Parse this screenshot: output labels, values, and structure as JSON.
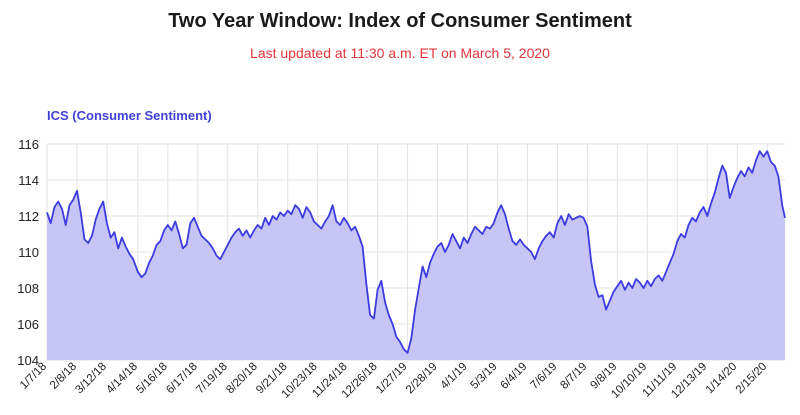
{
  "header": {
    "title": "Two Year Window: Index of Consumer Sentiment",
    "subtitle": "Last updated at 11:30 a.m. ET on March 5, 2020"
  },
  "colors": {
    "title": "#1a1a1a",
    "subtitle": "#e0353b",
    "line": "#3b3be0",
    "fill": "#c7c5f5",
    "grid": "#e3e3e3"
  },
  "chart_data": {
    "type": "area",
    "title": "Two Year Window: Index of Consumer Sentiment",
    "subtitle": "Last updated at 11:30 a.m. ET on March 5, 2020",
    "xlabel": "",
    "ylabel": "ICS (Consumer Sentiment)",
    "ylim": [
      104,
      116
    ],
    "yticks": [
      104,
      106,
      108,
      110,
      112,
      114,
      116
    ],
    "xlim": [
      "2018-01-07",
      "2020-03-05"
    ],
    "xticks": [
      "1/7/18",
      "2/8/18",
      "3/12/18",
      "4/14/18",
      "5/16/18",
      "6/17/18",
      "7/19/18",
      "8/20/18",
      "9/21/18",
      "10/23/18",
      "11/24/18",
      "12/26/18",
      "1/27/19",
      "2/28/19",
      "4/1/19",
      "5/3/19",
      "6/4/19",
      "7/6/19",
      "8/7/19",
      "9/8/19",
      "10/10/19",
      "11/11/19",
      "12/13/19",
      "1/14/20",
      "2/15/20"
    ],
    "grid": true,
    "legend": "none",
    "series": [
      {
        "name": "ICS (Consumer Sentiment)",
        "points": [
          [
            "2018-01-07",
            112.2
          ],
          [
            "2018-01-11",
            111.6
          ],
          [
            "2018-01-15",
            112.5
          ],
          [
            "2018-01-19",
            112.8
          ],
          [
            "2018-01-23",
            112.4
          ],
          [
            "2018-01-27",
            111.5
          ],
          [
            "2018-01-31",
            112.6
          ],
          [
            "2018-02-04",
            112.9
          ],
          [
            "2018-02-08",
            113.4
          ],
          [
            "2018-02-12",
            112.2
          ],
          [
            "2018-02-16",
            110.7
          ],
          [
            "2018-02-20",
            110.5
          ],
          [
            "2018-02-24",
            110.9
          ],
          [
            "2018-02-28",
            111.8
          ],
          [
            "2018-03-04",
            112.4
          ],
          [
            "2018-03-08",
            112.8
          ],
          [
            "2018-03-12",
            111.6
          ],
          [
            "2018-03-16",
            110.8
          ],
          [
            "2018-03-20",
            111.1
          ],
          [
            "2018-03-24",
            110.2
          ],
          [
            "2018-03-28",
            110.8
          ],
          [
            "2018-04-01",
            110.3
          ],
          [
            "2018-04-05",
            109.9
          ],
          [
            "2018-04-09",
            109.6
          ],
          [
            "2018-04-14",
            108.9
          ],
          [
            "2018-04-18",
            108.6
          ],
          [
            "2018-04-22",
            108.8
          ],
          [
            "2018-04-26",
            109.4
          ],
          [
            "2018-04-30",
            109.8
          ],
          [
            "2018-05-04",
            110.4
          ],
          [
            "2018-05-08",
            110.6
          ],
          [
            "2018-05-12",
            111.2
          ],
          [
            "2018-05-16",
            111.5
          ],
          [
            "2018-05-20",
            111.2
          ],
          [
            "2018-05-24",
            111.7
          ],
          [
            "2018-05-28",
            111.0
          ],
          [
            "2018-06-01",
            110.2
          ],
          [
            "2018-06-05",
            110.4
          ],
          [
            "2018-06-09",
            111.6
          ],
          [
            "2018-06-13",
            111.9
          ],
          [
            "2018-06-17",
            111.4
          ],
          [
            "2018-06-21",
            110.9
          ],
          [
            "2018-06-25",
            110.7
          ],
          [
            "2018-06-29",
            110.5
          ],
          [
            "2018-07-03",
            110.2
          ],
          [
            "2018-07-07",
            109.8
          ],
          [
            "2018-07-11",
            109.6
          ],
          [
            "2018-07-15",
            110.0
          ],
          [
            "2018-07-19",
            110.4
          ],
          [
            "2018-07-23",
            110.8
          ],
          [
            "2018-07-27",
            111.1
          ],
          [
            "2018-07-31",
            111.3
          ],
          [
            "2018-08-04",
            110.9
          ],
          [
            "2018-08-08",
            111.2
          ],
          [
            "2018-08-12",
            110.8
          ],
          [
            "2018-08-16",
            111.2
          ],
          [
            "2018-08-20",
            111.5
          ],
          [
            "2018-08-24",
            111.3
          ],
          [
            "2018-08-28",
            111.9
          ],
          [
            "2018-09-01",
            111.5
          ],
          [
            "2018-09-05",
            112.0
          ],
          [
            "2018-09-09",
            111.8
          ],
          [
            "2018-09-13",
            112.2
          ],
          [
            "2018-09-17",
            112.0
          ],
          [
            "2018-09-21",
            112.3
          ],
          [
            "2018-09-25",
            112.1
          ],
          [
            "2018-09-29",
            112.6
          ],
          [
            "2018-10-03",
            112.4
          ],
          [
            "2018-10-07",
            111.9
          ],
          [
            "2018-10-11",
            112.5
          ],
          [
            "2018-10-15",
            112.2
          ],
          [
            "2018-10-19",
            111.7
          ],
          [
            "2018-10-23",
            111.5
          ],
          [
            "2018-10-27",
            111.3
          ],
          [
            "2018-10-31",
            111.7
          ],
          [
            "2018-11-04",
            112.0
          ],
          [
            "2018-11-08",
            112.6
          ],
          [
            "2018-11-12",
            111.7
          ],
          [
            "2018-11-16",
            111.5
          ],
          [
            "2018-11-20",
            111.9
          ],
          [
            "2018-11-24",
            111.6
          ],
          [
            "2018-11-28",
            111.2
          ],
          [
            "2018-12-02",
            111.4
          ],
          [
            "2018-12-06",
            110.9
          ],
          [
            "2018-12-10",
            110.3
          ],
          [
            "2018-12-14",
            108.2
          ],
          [
            "2018-12-18",
            106.5
          ],
          [
            "2018-12-22",
            106.3
          ],
          [
            "2018-12-26",
            107.9
          ],
          [
            "2018-12-30",
            108.4
          ],
          [
            "2019-01-03",
            107.2
          ],
          [
            "2019-01-07",
            106.5
          ],
          [
            "2019-01-11",
            106.0
          ],
          [
            "2019-01-15",
            105.3
          ],
          [
            "2019-01-19",
            105.0
          ],
          [
            "2019-01-23",
            104.6
          ],
          [
            "2019-01-27",
            104.4
          ],
          [
            "2019-01-31",
            105.2
          ],
          [
            "2019-02-04",
            106.8
          ],
          [
            "2019-02-08",
            108.0
          ],
          [
            "2019-02-12",
            109.2
          ],
          [
            "2019-02-16",
            108.6
          ],
          [
            "2019-02-20",
            109.4
          ],
          [
            "2019-02-24",
            109.9
          ],
          [
            "2019-02-28",
            110.3
          ],
          [
            "2019-03-04",
            110.5
          ],
          [
            "2019-03-08",
            110.0
          ],
          [
            "2019-03-12",
            110.4
          ],
          [
            "2019-03-16",
            111.0
          ],
          [
            "2019-03-20",
            110.6
          ],
          [
            "2019-03-24",
            110.2
          ],
          [
            "2019-03-28",
            110.8
          ],
          [
            "2019-04-01",
            110.5
          ],
          [
            "2019-04-05",
            111.0
          ],
          [
            "2019-04-09",
            111.4
          ],
          [
            "2019-04-13",
            111.2
          ],
          [
            "2019-04-17",
            111.0
          ],
          [
            "2019-04-21",
            111.4
          ],
          [
            "2019-04-25",
            111.3
          ],
          [
            "2019-04-29",
            111.6
          ],
          [
            "2019-05-03",
            112.2
          ],
          [
            "2019-05-07",
            112.6
          ],
          [
            "2019-05-11",
            112.1
          ],
          [
            "2019-05-15",
            111.3
          ],
          [
            "2019-05-19",
            110.6
          ],
          [
            "2019-05-23",
            110.4
          ],
          [
            "2019-05-27",
            110.7
          ],
          [
            "2019-05-31",
            110.4
          ],
          [
            "2019-06-04",
            110.2
          ],
          [
            "2019-06-08",
            110.0
          ],
          [
            "2019-06-12",
            109.6
          ],
          [
            "2019-06-16",
            110.2
          ],
          [
            "2019-06-20",
            110.6
          ],
          [
            "2019-06-24",
            110.9
          ],
          [
            "2019-06-28",
            111.1
          ],
          [
            "2019-07-02",
            110.8
          ],
          [
            "2019-07-06",
            111.6
          ],
          [
            "2019-07-10",
            112.0
          ],
          [
            "2019-07-14",
            111.5
          ],
          [
            "2019-07-18",
            112.1
          ],
          [
            "2019-07-22",
            111.8
          ],
          [
            "2019-07-26",
            111.9
          ],
          [
            "2019-07-30",
            112.0
          ],
          [
            "2019-08-03",
            111.9
          ],
          [
            "2019-08-07",
            111.4
          ],
          [
            "2019-08-11",
            109.5
          ],
          [
            "2019-08-15",
            108.2
          ],
          [
            "2019-08-19",
            107.5
          ],
          [
            "2019-08-23",
            107.6
          ],
          [
            "2019-08-27",
            106.8
          ],
          [
            "2019-08-31",
            107.3
          ],
          [
            "2019-09-04",
            107.8
          ],
          [
            "2019-09-08",
            108.1
          ],
          [
            "2019-09-12",
            108.4
          ],
          [
            "2019-09-16",
            107.9
          ],
          [
            "2019-09-20",
            108.3
          ],
          [
            "2019-09-24",
            108.0
          ],
          [
            "2019-09-28",
            108.5
          ],
          [
            "2019-10-02",
            108.3
          ],
          [
            "2019-10-06",
            108.0
          ],
          [
            "2019-10-10",
            108.4
          ],
          [
            "2019-10-14",
            108.1
          ],
          [
            "2019-10-18",
            108.5
          ],
          [
            "2019-10-22",
            108.7
          ],
          [
            "2019-10-26",
            108.4
          ],
          [
            "2019-10-30",
            108.9
          ],
          [
            "2019-11-03",
            109.4
          ],
          [
            "2019-11-07",
            109.9
          ],
          [
            "2019-11-11",
            110.6
          ],
          [
            "2019-11-15",
            111.0
          ],
          [
            "2019-11-19",
            110.8
          ],
          [
            "2019-11-23",
            111.5
          ],
          [
            "2019-11-27",
            111.9
          ],
          [
            "2019-12-01",
            111.7
          ],
          [
            "2019-12-05",
            112.2
          ],
          [
            "2019-12-09",
            112.5
          ],
          [
            "2019-12-13",
            112.0
          ],
          [
            "2019-12-17",
            112.7
          ],
          [
            "2019-12-21",
            113.3
          ],
          [
            "2019-12-25",
            114.1
          ],
          [
            "2019-12-29",
            114.8
          ],
          [
            "2020-01-02",
            114.4
          ],
          [
            "2020-01-06",
            113.0
          ],
          [
            "2020-01-10",
            113.6
          ],
          [
            "2020-01-14",
            114.1
          ],
          [
            "2020-01-18",
            114.5
          ],
          [
            "2020-01-22",
            114.2
          ],
          [
            "2020-01-26",
            114.7
          ],
          [
            "2020-01-30",
            114.4
          ],
          [
            "2020-02-03",
            115.1
          ],
          [
            "2020-02-07",
            115.6
          ],
          [
            "2020-02-11",
            115.3
          ],
          [
            "2020-02-15",
            115.6
          ],
          [
            "2020-02-19",
            115.0
          ],
          [
            "2020-02-23",
            114.8
          ],
          [
            "2020-02-27",
            114.2
          ],
          [
            "2020-03-02",
            112.6
          ],
          [
            "2020-03-05",
            111.9
          ]
        ]
      }
    ]
  }
}
